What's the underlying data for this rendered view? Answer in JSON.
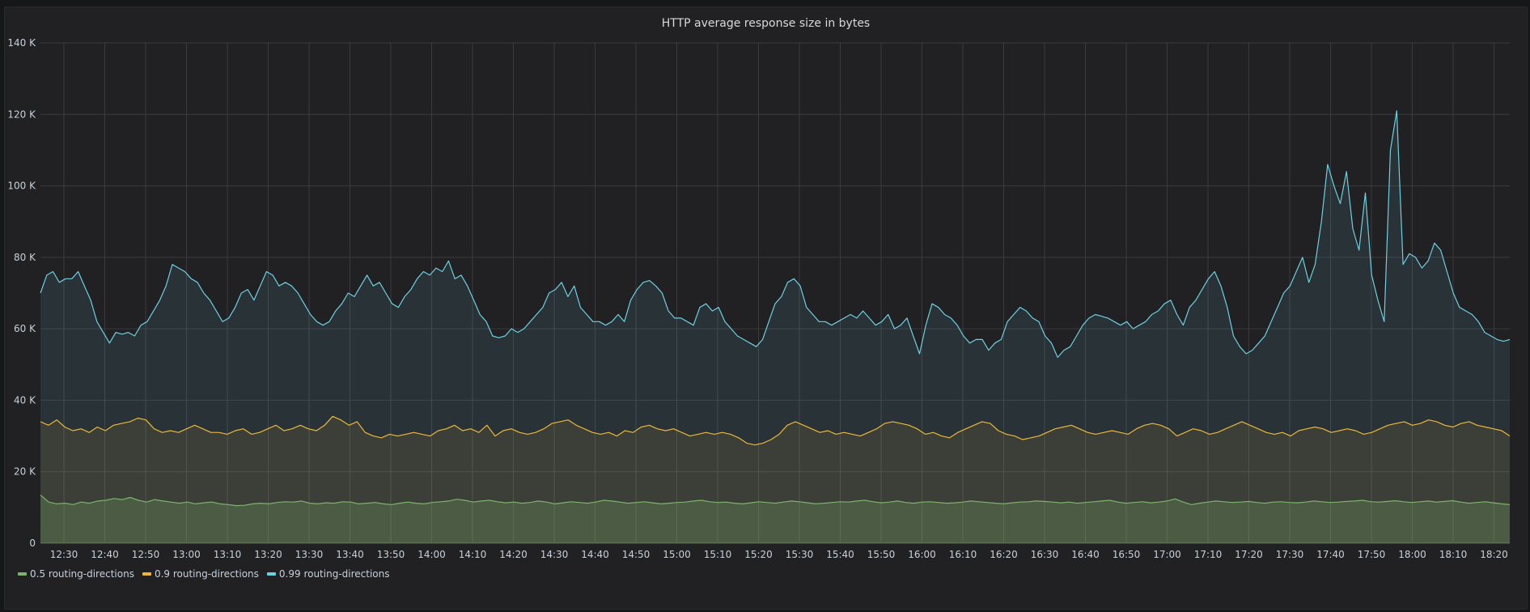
{
  "panel": {
    "title": "HTTP average response size in bytes"
  },
  "chart_data": {
    "type": "area",
    "title": "HTTP average response size in bytes",
    "xlabel": "",
    "ylabel": "",
    "ylim": [
      0,
      140000
    ],
    "y_ticks": [
      "0",
      "20 K",
      "40 K",
      "60 K",
      "80 K",
      "100 K",
      "120 K",
      "140 K"
    ],
    "y_tick_values": [
      0,
      20000,
      40000,
      60000,
      80000,
      100000,
      120000,
      140000
    ],
    "x_ticks": [
      "12:30",
      "12:40",
      "12:50",
      "13:00",
      "13:10",
      "13:20",
      "13:30",
      "13:40",
      "13:50",
      "14:00",
      "14:10",
      "14:20",
      "14:30",
      "14:40",
      "14:50",
      "15:00",
      "15:10",
      "15:20",
      "15:30",
      "15:40",
      "15:50",
      "16:00",
      "16:10",
      "16:20",
      "16:30",
      "16:40",
      "16:50",
      "17:00",
      "17:10",
      "17:20",
      "17:30",
      "17:40",
      "17:50",
      "18:00",
      "18:10",
      "18:20"
    ],
    "x_start": "12:24",
    "x_step_minutes": 2,
    "grid": true,
    "legend_position": "bottom-left",
    "units": "K bytes",
    "series": [
      {
        "name": "0.5 routing-directions",
        "color": "#7eb26d",
        "values": [
          13.5,
          11.5,
          11,
          11.2,
          10.8,
          11.5,
          11.2,
          11.8,
          12,
          12.5,
          12.2,
          12.8,
          12,
          11.5,
          12.2,
          11.8,
          11.5,
          11.2,
          11.5,
          11,
          11.3,
          11.5,
          11,
          10.8,
          10.5,
          10.6,
          11,
          11.2,
          11,
          11.4,
          11.6,
          11.5,
          11.8,
          11.2,
          11,
          11.3,
          11.2,
          11.6,
          11.5,
          11,
          11.2,
          11.4,
          11,
          10.8,
          11.2,
          11.5,
          11.2,
          11,
          11.4,
          11.6,
          11.8,
          12.3,
          12,
          11.5,
          11.8,
          12,
          11.6,
          11.3,
          11.5,
          11.2,
          11.4,
          11.8,
          11.5,
          11,
          11.3,
          11.6,
          11.4,
          11.2,
          11.5,
          12,
          11.8,
          11.5,
          11.2,
          11.4,
          11.6,
          11.3,
          11,
          11.2,
          11.4,
          11.5,
          11.8,
          12,
          11.6,
          11.4,
          11.5,
          11.2,
          11,
          11.3,
          11.6,
          11.4,
          11.2,
          11.5,
          11.8,
          11.6,
          11.3,
          11,
          11.2,
          11.4,
          11.6,
          11.5,
          11.8,
          12,
          11.6,
          11.3,
          11.5,
          11.8,
          11.4,
          11.2,
          11.5,
          11.6,
          11.4,
          11.2,
          11.3,
          11.5,
          11.8,
          11.6,
          11.4,
          11.2,
          11,
          11.3,
          11.5,
          11.6,
          11.8,
          11.7,
          11.5,
          11.3,
          11.5,
          11.2,
          11.4,
          11.6,
          11.8,
          12,
          11.5,
          11.2,
          11.4,
          11.6,
          11.3,
          11.5,
          11.8,
          12.4,
          11.5,
          10.8,
          11.2,
          11.5,
          11.8,
          11.6,
          11.4,
          11.5,
          11.7,
          11.4,
          11.2,
          11.5,
          11.6,
          11.4,
          11.3,
          11.5,
          11.8,
          11.6,
          11.4,
          11.5,
          11.7,
          11.8,
          12,
          11.6,
          11.5,
          11.7,
          11.9,
          11.6,
          11.4,
          11.6,
          11.8,
          11.5,
          11.7,
          11.9,
          11.5,
          11.2,
          11.4,
          11.6,
          11.3,
          11,
          10.8
        ]
      },
      {
        "name": "0.9 routing-directions",
        "color": "#eab839",
        "values": [
          34,
          33,
          34.5,
          32.5,
          31.5,
          32,
          31,
          32.5,
          31.5,
          33,
          33.5,
          34,
          35,
          34.5,
          32,
          31,
          31.5,
          31,
          32,
          33,
          32,
          31,
          31,
          30.5,
          31.5,
          32,
          30.5,
          31,
          32,
          33,
          31.5,
          32,
          33,
          32,
          31.5,
          33,
          35.5,
          34.5,
          33,
          34,
          31,
          30,
          29.5,
          30.5,
          30,
          30.5,
          31,
          30.5,
          30,
          31.5,
          32,
          33,
          31.5,
          32,
          31,
          33,
          30,
          31.5,
          32,
          31,
          30.5,
          31,
          32,
          33.5,
          34,
          34.5,
          33,
          32,
          31,
          30.5,
          31,
          30,
          31.5,
          31,
          32.5,
          33,
          32,
          31.5,
          32,
          31,
          30,
          30.5,
          31,
          30.5,
          31,
          30.5,
          29.5,
          28,
          27.5,
          28,
          29,
          30.5,
          33,
          34,
          33,
          32,
          31,
          31.5,
          30.5,
          31,
          30.5,
          30,
          31,
          32,
          33.5,
          34,
          33.5,
          33,
          32,
          30.5,
          31,
          30,
          29.5,
          31,
          32,
          33,
          34,
          33.5,
          31.5,
          30.5,
          30,
          29,
          29.5,
          30,
          31,
          32,
          32.5,
          33,
          32,
          31,
          30.5,
          31,
          31.5,
          31,
          30.5,
          32,
          33,
          33.5,
          33,
          32,
          30,
          31,
          32,
          31.5,
          30.5,
          31,
          32,
          33,
          34,
          33,
          32,
          31,
          30.5,
          31,
          30,
          31.5,
          32,
          32.5,
          32,
          31,
          31.5,
          32,
          31.5,
          30.5,
          31,
          32,
          33,
          33.5,
          34,
          33,
          33.5,
          34.5,
          34,
          33,
          32.5,
          33.5,
          34,
          33,
          32.5,
          32,
          31.5,
          30
        ]
      },
      {
        "name": "0.99 routing-directions",
        "color": "#6ed0e0",
        "values": [
          70,
          75,
          76,
          73,
          74,
          74,
          76,
          72,
          68,
          62,
          59,
          56,
          59,
          58.5,
          59,
          58,
          61,
          62,
          65,
          68,
          72,
          78,
          77,
          76,
          74,
          73,
          70,
          68,
          65,
          62,
          63,
          66,
          70,
          71,
          68,
          72,
          76,
          75,
          72,
          73,
          72,
          70,
          67,
          64,
          62,
          61,
          62,
          65,
          67,
          70,
          69,
          72,
          75,
          72,
          73,
          70,
          67,
          66,
          69,
          71,
          74,
          76,
          75,
          77,
          76,
          79,
          74,
          75,
          72,
          68,
          64,
          62,
          58,
          57.5,
          58,
          60,
          59,
          60,
          62,
          64,
          66,
          70,
          71,
          73,
          69,
          72,
          66,
          64,
          62,
          62,
          61,
          62,
          64,
          62,
          68,
          71,
          73,
          73.5,
          72,
          70,
          65,
          63,
          63,
          62,
          61,
          66,
          67,
          65,
          66,
          62,
          60,
          58,
          57,
          56,
          55,
          57,
          62,
          67,
          69,
          73,
          74,
          72,
          66,
          64,
          62,
          62,
          61,
          62,
          63,
          64,
          63,
          65,
          63,
          61,
          62,
          64,
          60,
          61,
          63,
          58,
          53,
          61,
          67,
          66,
          64,
          63,
          61,
          58,
          56,
          57,
          57,
          54,
          56,
          57,
          62,
          64,
          66,
          65,
          63,
          62,
          58,
          56,
          52,
          54,
          55,
          58,
          61,
          63,
          64,
          63.5,
          63,
          62,
          61,
          62,
          60,
          61,
          62,
          64,
          65,
          67,
          68,
          64,
          61,
          66,
          68,
          71,
          74,
          76,
          72,
          66,
          58,
          55,
          53,
          54,
          56,
          58,
          62,
          66,
          70,
          72,
          76,
          80,
          73,
          78,
          90,
          106,
          100,
          95,
          104,
          88,
          82,
          98,
          75,
          68,
          62,
          110,
          121,
          78,
          81,
          80,
          77,
          79,
          84,
          82,
          76,
          70,
          66,
          65,
          64,
          62,
          59,
          58,
          57,
          56.5,
          57
        ]
      }
    ]
  },
  "legend": {
    "items": [
      {
        "label": "0.5 routing-directions",
        "color": "#7eb26d"
      },
      {
        "label": "0.9 routing-directions",
        "color": "#eab839"
      },
      {
        "label": "0.99 routing-directions",
        "color": "#6ed0e0"
      }
    ]
  }
}
